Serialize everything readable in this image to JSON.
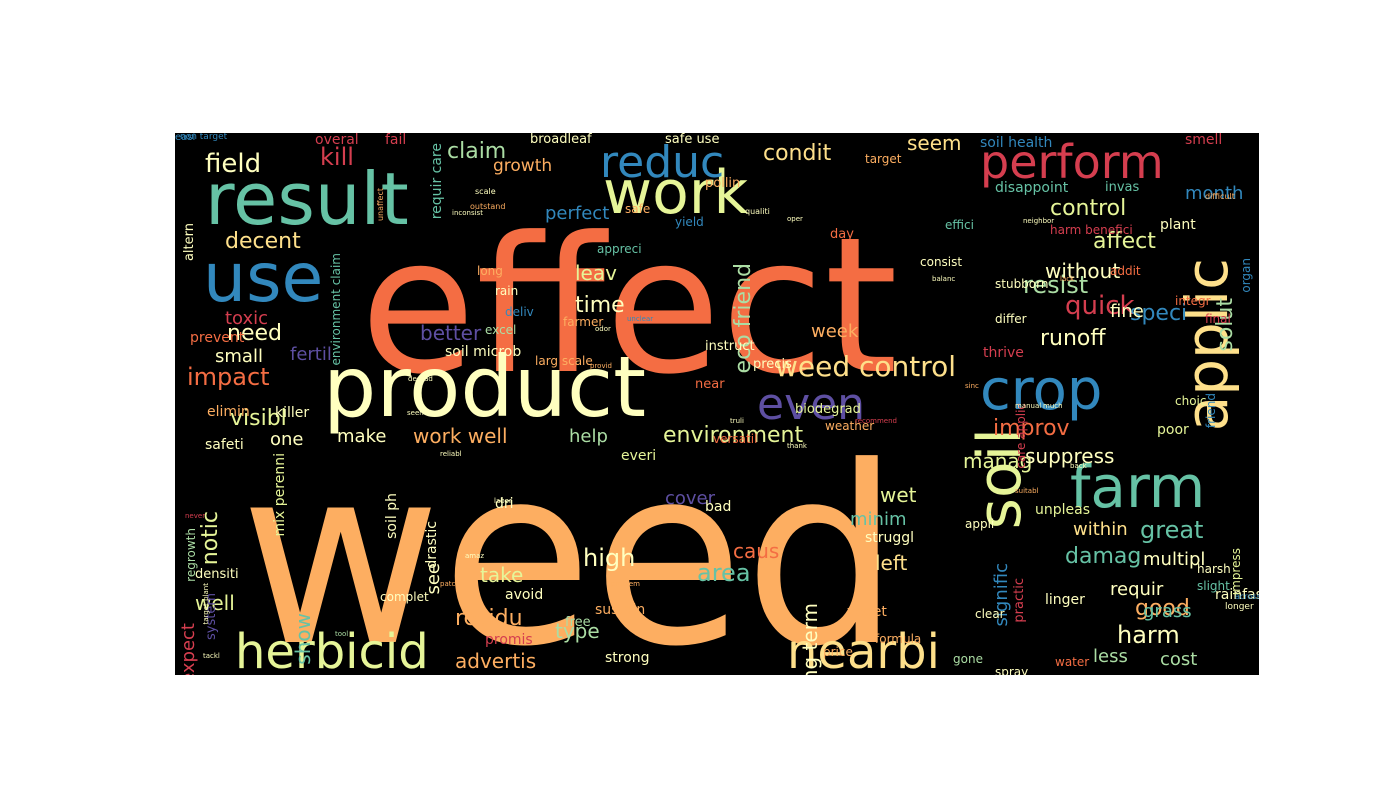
{
  "palette": {
    "red": "#d53e4f",
    "orange": "#f46d43",
    "light_orange": "#fdae61",
    "yellow": "#fee08b",
    "cream": "#ffffbf",
    "light_green": "#e6f598",
    "green": "#abdda4",
    "teal": "#66c2a5",
    "blue": "#3288bd",
    "indigo": "#5e4fa2"
  },
  "words": [
    {
      "text": "weed",
      "color": "light_orange"
    },
    {
      "text": "effect",
      "color": "orange"
    },
    {
      "text": "product",
      "color": "cream"
    },
    {
      "text": "result",
      "color": "teal"
    },
    {
      "text": "use",
      "color": "blue"
    },
    {
      "text": "work",
      "color": "light_green"
    },
    {
      "text": "reduc",
      "color": "blue"
    },
    {
      "text": "perform",
      "color": "red"
    },
    {
      "text": "crop",
      "color": "blue"
    },
    {
      "text": "farm",
      "color": "teal"
    },
    {
      "text": "soil",
      "color": "light_green"
    },
    {
      "text": "applic",
      "color": "yellow"
    },
    {
      "text": "herbicid",
      "color": "light_green"
    },
    {
      "text": "nearbi",
      "color": "yellow"
    },
    {
      "text": "even",
      "color": "indigo"
    },
    {
      "text": "weed control",
      "color": "yellow"
    },
    {
      "text": "field",
      "color": "cream"
    },
    {
      "text": "kill",
      "color": "red"
    },
    {
      "text": "claim",
      "color": "green"
    },
    {
      "text": "condit",
      "color": "yellow"
    },
    {
      "text": "seem",
      "color": "yellow"
    },
    {
      "text": "control",
      "color": "light_green"
    },
    {
      "text": "decent",
      "color": "yellow"
    },
    {
      "text": "growth",
      "color": "light_orange"
    },
    {
      "text": "perfect",
      "color": "blue"
    },
    {
      "text": "affect",
      "color": "light_green"
    },
    {
      "text": "resist",
      "color": "green"
    },
    {
      "text": "quick",
      "color": "red"
    },
    {
      "text": "runoff",
      "color": "cream"
    },
    {
      "text": "without",
      "color": "cream"
    },
    {
      "text": "month",
      "color": "blue"
    },
    {
      "text": "leav",
      "color": "light_green"
    },
    {
      "text": "time",
      "color": "cream"
    },
    {
      "text": "better",
      "color": "indigo"
    },
    {
      "text": "eco friend",
      "color": "green"
    },
    {
      "text": "need",
      "color": "cream"
    },
    {
      "text": "impact",
      "color": "orange"
    },
    {
      "text": "toxic",
      "color": "red"
    },
    {
      "text": "small",
      "color": "cream"
    },
    {
      "text": "fertil",
      "color": "indigo"
    },
    {
      "text": "visibl",
      "color": "light_green"
    },
    {
      "text": "improv",
      "color": "orange"
    },
    {
      "text": "environment",
      "color": "light_green"
    },
    {
      "text": "work well",
      "color": "light_orange"
    },
    {
      "text": "make",
      "color": "cream"
    },
    {
      "text": "help",
      "color": "green"
    },
    {
      "text": "one",
      "color": "cream"
    },
    {
      "text": "manag",
      "color": "light_green"
    },
    {
      "text": "suppress",
      "color": "cream"
    },
    {
      "text": "notic",
      "color": "light_green"
    },
    {
      "text": "well",
      "color": "light_green"
    },
    {
      "text": "expect",
      "color": "red"
    },
    {
      "text": "show",
      "color": "teal"
    },
    {
      "text": "high",
      "color": "cream"
    },
    {
      "text": "take",
      "color": "light_green"
    },
    {
      "text": "area",
      "color": "teal"
    },
    {
      "text": "caus",
      "color": "orange"
    },
    {
      "text": "long term",
      "color": "cream"
    },
    {
      "text": "left",
      "color": "yellow"
    },
    {
      "text": "wet",
      "color": "light_green"
    },
    {
      "text": "minim",
      "color": "teal"
    },
    {
      "text": "cover",
      "color": "indigo"
    },
    {
      "text": "great",
      "color": "teal"
    },
    {
      "text": "within",
      "color": "yellow"
    },
    {
      "text": "damag",
      "color": "teal"
    },
    {
      "text": "multipl",
      "color": "cream"
    },
    {
      "text": "good",
      "color": "light_orange"
    },
    {
      "text": "requir",
      "color": "cream"
    },
    {
      "text": "harm",
      "color": "cream"
    },
    {
      "text": "less",
      "color": "green"
    },
    {
      "text": "grass",
      "color": "teal"
    },
    {
      "text": "cost",
      "color": "green"
    },
    {
      "text": "residu",
      "color": "light_orange"
    },
    {
      "text": "type",
      "color": "green"
    },
    {
      "text": "advertis",
      "color": "light_orange"
    },
    {
      "text": "speci",
      "color": "blue"
    },
    {
      "text": "solut",
      "color": "green"
    },
    {
      "text": "fine",
      "color": "cream"
    },
    {
      "text": "signific",
      "color": "blue"
    },
    {
      "text": "see",
      "color": "cream"
    },
    {
      "text": "week",
      "color": "light_orange"
    },
    {
      "text": "soil health",
      "color": "blue"
    },
    {
      "text": "overal",
      "color": "red"
    },
    {
      "text": "fail",
      "color": "red"
    },
    {
      "text": "broadleaf",
      "color": "cream"
    },
    {
      "text": "safe use",
      "color": "cream"
    },
    {
      "text": "smell",
      "color": "red"
    },
    {
      "text": "target",
      "color": "light_orange"
    },
    {
      "text": "disappoint",
      "color": "teal"
    },
    {
      "text": "invas",
      "color": "teal"
    },
    {
      "text": "pollin",
      "color": "light_orange"
    },
    {
      "text": "safe",
      "color": "light_orange"
    },
    {
      "text": "yield",
      "color": "blue"
    },
    {
      "text": "plant",
      "color": "cream"
    },
    {
      "text": "effici",
      "color": "teal"
    },
    {
      "text": "harm benefici",
      "color": "red"
    },
    {
      "text": "day",
      "color": "orange"
    },
    {
      "text": "appreci",
      "color": "teal"
    },
    {
      "text": "long",
      "color": "light_orange"
    },
    {
      "text": "rain",
      "color": "cream"
    },
    {
      "text": "excel",
      "color": "green"
    },
    {
      "text": "farmer",
      "color": "light_orange"
    },
    {
      "text": "consist",
      "color": "cream"
    },
    {
      "text": "stubborn",
      "color": "cream"
    },
    {
      "text": "addit",
      "color": "orange"
    },
    {
      "text": "differ",
      "color": "cream"
    },
    {
      "text": "integr",
      "color": "orange"
    },
    {
      "text": "final",
      "color": "red"
    },
    {
      "text": "organ",
      "color": "blue"
    },
    {
      "text": "deliv",
      "color": "blue"
    },
    {
      "text": "soil microb",
      "color": "cream"
    },
    {
      "text": "larg scale",
      "color": "light_orange"
    },
    {
      "text": "instruct",
      "color": "cream"
    },
    {
      "text": "precis",
      "color": "cream"
    },
    {
      "text": "near",
      "color": "orange"
    },
    {
      "text": "thrive",
      "color": "red"
    },
    {
      "text": "biodegrad",
      "color": "light_green"
    },
    {
      "text": "weather",
      "color": "light_orange"
    },
    {
      "text": "choic",
      "color": "light_green"
    },
    {
      "text": "poor",
      "color": "light_green"
    },
    {
      "text": "versatil",
      "color": "orange"
    },
    {
      "text": "everi",
      "color": "light_green"
    },
    {
      "text": "appli",
      "color": "cream"
    },
    {
      "text": "unpleas",
      "color": "light_green"
    },
    {
      "text": "linger",
      "color": "cream"
    },
    {
      "text": "harsh",
      "color": "cream"
    },
    {
      "text": "slight",
      "color": "teal"
    },
    {
      "text": "dri",
      "color": "cream"
    },
    {
      "text": "bad",
      "color": "cream"
    },
    {
      "text": "struggl",
      "color": "cream"
    },
    {
      "text": "avoid",
      "color": "cream"
    },
    {
      "text": "rainfast",
      "color": "cream"
    },
    {
      "text": "sustain",
      "color": "light_orange"
    },
    {
      "text": "complet",
      "color": "cream"
    },
    {
      "text": "clear",
      "color": "cream"
    },
    {
      "text": "promis",
      "color": "red"
    },
    {
      "text": "strong",
      "color": "cream"
    },
    {
      "text": "free",
      "color": "green"
    },
    {
      "text": "price",
      "color": "light_orange"
    },
    {
      "text": "veget",
      "color": "light_orange"
    },
    {
      "text": "formula",
      "color": "light_orange"
    },
    {
      "text": "water",
      "color": "orange"
    },
    {
      "text": "gone",
      "color": "green"
    },
    {
      "text": "spray",
      "color": "cream"
    },
    {
      "text": "elimin",
      "color": "light_orange"
    },
    {
      "text": "killer",
      "color": "cream"
    },
    {
      "text": "safeti",
      "color": "cream"
    },
    {
      "text": "prevent",
      "color": "orange"
    },
    {
      "text": "altern",
      "color": "cream"
    },
    {
      "text": "environment claim",
      "color": "teal"
    },
    {
      "text": "regrowth",
      "color": "green"
    },
    {
      "text": "mix perenni",
      "color": "light_green"
    },
    {
      "text": "soil ph",
      "color": "cream"
    },
    {
      "text": "drastic",
      "color": "cream"
    },
    {
      "text": "densiti",
      "color": "cream"
    },
    {
      "text": "system",
      "color": "indigo"
    },
    {
      "text": "requir care",
      "color": "teal"
    },
    {
      "text": "practic",
      "color": "red"
    },
    {
      "text": "care applic",
      "color": "red"
    },
    {
      "text": "friend",
      "color": "blue"
    },
    {
      "text": "impress",
      "color": "light_green"
    },
    {
      "text": "non target",
      "color": "blue"
    },
    {
      "text": "difficult",
      "color": "light_orange"
    },
    {
      "text": "scale",
      "color": "cream"
    },
    {
      "text": "outstand",
      "color": "light_orange"
    },
    {
      "text": "unaffect",
      "color": "light_orange"
    },
    {
      "text": "inconsist",
      "color": "cream"
    },
    {
      "text": "qualiti",
      "color": "cream"
    },
    {
      "text": "oper",
      "color": "cream"
    },
    {
      "text": "neighbor",
      "color": "cream"
    },
    {
      "text": "lack",
      "color": "light_orange"
    },
    {
      "text": "balanc",
      "color": "cream"
    },
    {
      "text": "odor",
      "color": "cream"
    },
    {
      "text": "unclear",
      "color": "blue"
    },
    {
      "text": "provid",
      "color": "light_orange"
    },
    {
      "text": "degrad",
      "color": "cream"
    },
    {
      "text": "seen",
      "color": "cream"
    },
    {
      "text": "truli",
      "color": "cream"
    },
    {
      "text": "recommend",
      "color": "red"
    },
    {
      "text": "sinc",
      "color": "light_orange"
    },
    {
      "text": "much",
      "color": "cream"
    },
    {
      "text": "manual",
      "color": "cream"
    },
    {
      "text": "thank",
      "color": "cream"
    },
    {
      "text": "reliabl",
      "color": "cream"
    },
    {
      "text": "back",
      "color": "cream"
    },
    {
      "text": "suitabl",
      "color": "light_orange"
    },
    {
      "text": "labor",
      "color": "cream"
    },
    {
      "text": "amaz",
      "color": "cream"
    },
    {
      "text": "problem",
      "color": "light_orange"
    },
    {
      "text": "patch",
      "color": "light_orange"
    },
    {
      "text": "across",
      "color": "blue"
    },
    {
      "text": "longer",
      "color": "cream"
    },
    {
      "text": "tackl",
      "color": "cream"
    },
    {
      "text": "tool",
      "color": "green"
    },
    {
      "text": "target plant",
      "color": "cream"
    },
    {
      "text": "never",
      "color": "red"
    },
    {
      "text": "easi",
      "color": "blue"
    }
  ]
}
